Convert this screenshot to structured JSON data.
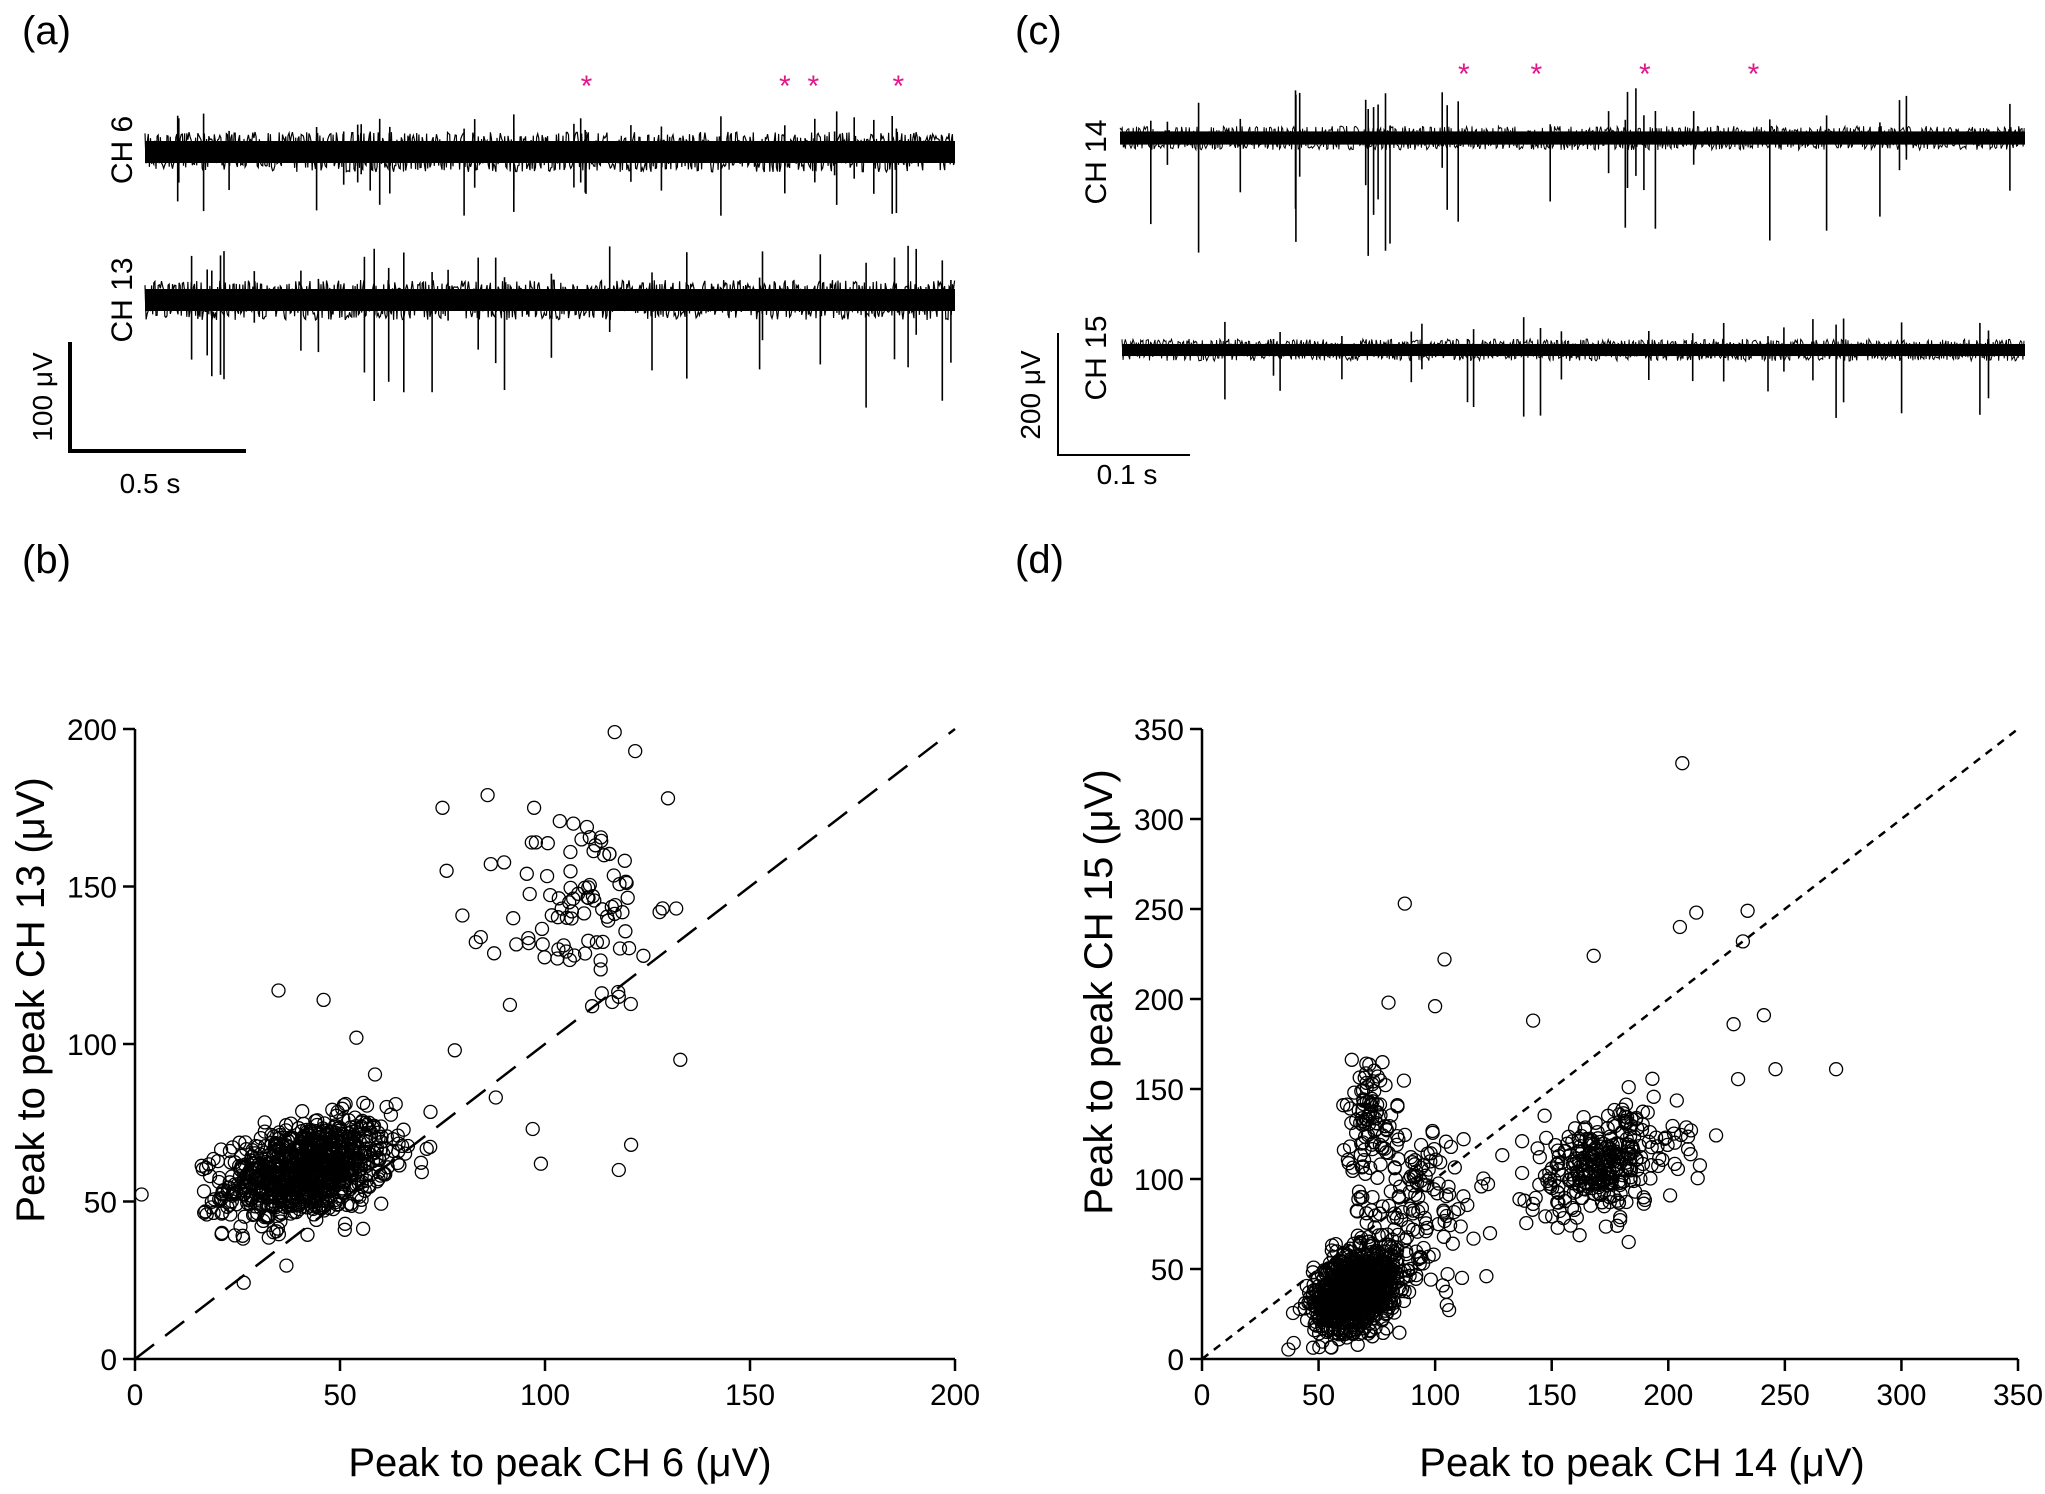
{
  "panels": {
    "a": {
      "letter": "(a)",
      "channels": [
        {
          "label": "CH 6"
        },
        {
          "label": "CH 13"
        }
      ],
      "scale_amplitude": "100 μV",
      "scale_time": "0.5 s",
      "spike_markers": 4,
      "spike_positions": [
        0.545,
        0.79,
        0.825,
        0.93
      ],
      "marker_color": "#e0198b"
    },
    "b": {
      "letter": "(b)"
    },
    "c": {
      "letter": "(c)",
      "channels": [
        {
          "label": "CH 14"
        },
        {
          "label": "CH 15"
        }
      ],
      "scale_amplitude": "200 μV",
      "scale_time": "0.1 s",
      "spike_markers": 4,
      "spike_positions": [
        0.38,
        0.46,
        0.58,
        0.7
      ],
      "marker_color": "#e0198b"
    },
    "d": {
      "letter": "(d)"
    }
  },
  "chart_data": [
    {
      "type": "scatter",
      "panel": "b",
      "xlabel": "Peak to peak CH 6 (μV)",
      "ylabel": "Peak to peak CH 13 (μV)",
      "xlim": [
        0,
        200
      ],
      "ylim": [
        0,
        200
      ],
      "xticks": [
        0,
        50,
        100,
        150,
        200
      ],
      "yticks": [
        0,
        50,
        100,
        150,
        200
      ],
      "reference_line": {
        "style": "long-dash",
        "from": [
          0,
          0
        ],
        "to": [
          200,
          200
        ]
      },
      "clusters": [
        {
          "n": 950,
          "center": [
            42,
            60
          ],
          "spread": [
            10,
            8
          ],
          "corr": 0.35
        },
        {
          "n": 90,
          "center": [
            108,
            142
          ],
          "spread": [
            9,
            17
          ],
          "corr": 0.1
        }
      ],
      "outliers": [
        [
          35,
          117
        ],
        [
          46,
          114
        ],
        [
          54,
          102
        ],
        [
          78,
          98
        ],
        [
          99,
          62
        ],
        [
          97,
          73
        ],
        [
          118,
          60
        ],
        [
          121,
          68
        ],
        [
          133,
          95
        ],
        [
          117,
          199
        ],
        [
          122,
          193
        ],
        [
          130,
          178
        ],
        [
          132,
          143
        ],
        [
          75,
          175
        ],
        [
          76,
          155
        ],
        [
          86,
          179
        ],
        [
          118,
          115
        ],
        [
          124,
          128
        ],
        [
          88,
          83
        ]
      ],
      "marker": "open-circle",
      "marker_color": "#000000",
      "grid": false
    },
    {
      "type": "scatter",
      "panel": "d",
      "xlabel": "Peak to peak CH 14 (μV)",
      "ylabel": "Peak to peak CH 15 (μV)",
      "xlim": [
        0,
        350
      ],
      "ylim": [
        0,
        350
      ],
      "xticks": [
        0,
        50,
        100,
        150,
        200,
        250,
        300,
        350
      ],
      "yticks": [
        0,
        50,
        100,
        150,
        200,
        250,
        300,
        350
      ],
      "reference_line": {
        "style": "short-dash",
        "from": [
          0,
          0
        ],
        "to": [
          350,
          350
        ]
      },
      "clusters": [
        {
          "n": 950,
          "center": [
            66,
            38
          ],
          "spread": [
            9,
            11
          ],
          "corr": 0.3
        },
        {
          "n": 90,
          "center": [
            72,
            135
          ],
          "spread": [
            6,
            17
          ],
          "corr": 0.0
        },
        {
          "n": 150,
          "center": [
            90,
            85
          ],
          "spread": [
            14,
            25
          ],
          "corr": 0.2
        },
        {
          "n": 320,
          "center": [
            172,
            108
          ],
          "spread": [
            16,
            15
          ],
          "corr": 0.3
        }
      ],
      "outliers": [
        [
          206,
          331
        ],
        [
          87,
          253
        ],
        [
          234,
          249
        ],
        [
          212,
          248
        ],
        [
          205,
          240
        ],
        [
          232,
          232
        ],
        [
          104,
          222
        ],
        [
          168,
          224
        ],
        [
          241,
          191
        ],
        [
          272,
          161
        ],
        [
          246,
          161
        ],
        [
          228,
          186
        ],
        [
          100,
          196
        ],
        [
          80,
          198
        ],
        [
          142,
          188
        ],
        [
          183,
          65
        ],
        [
          122,
          46
        ],
        [
          105,
          30
        ]
      ],
      "marker": "open-circle",
      "marker_color": "#000000",
      "grid": false
    }
  ]
}
